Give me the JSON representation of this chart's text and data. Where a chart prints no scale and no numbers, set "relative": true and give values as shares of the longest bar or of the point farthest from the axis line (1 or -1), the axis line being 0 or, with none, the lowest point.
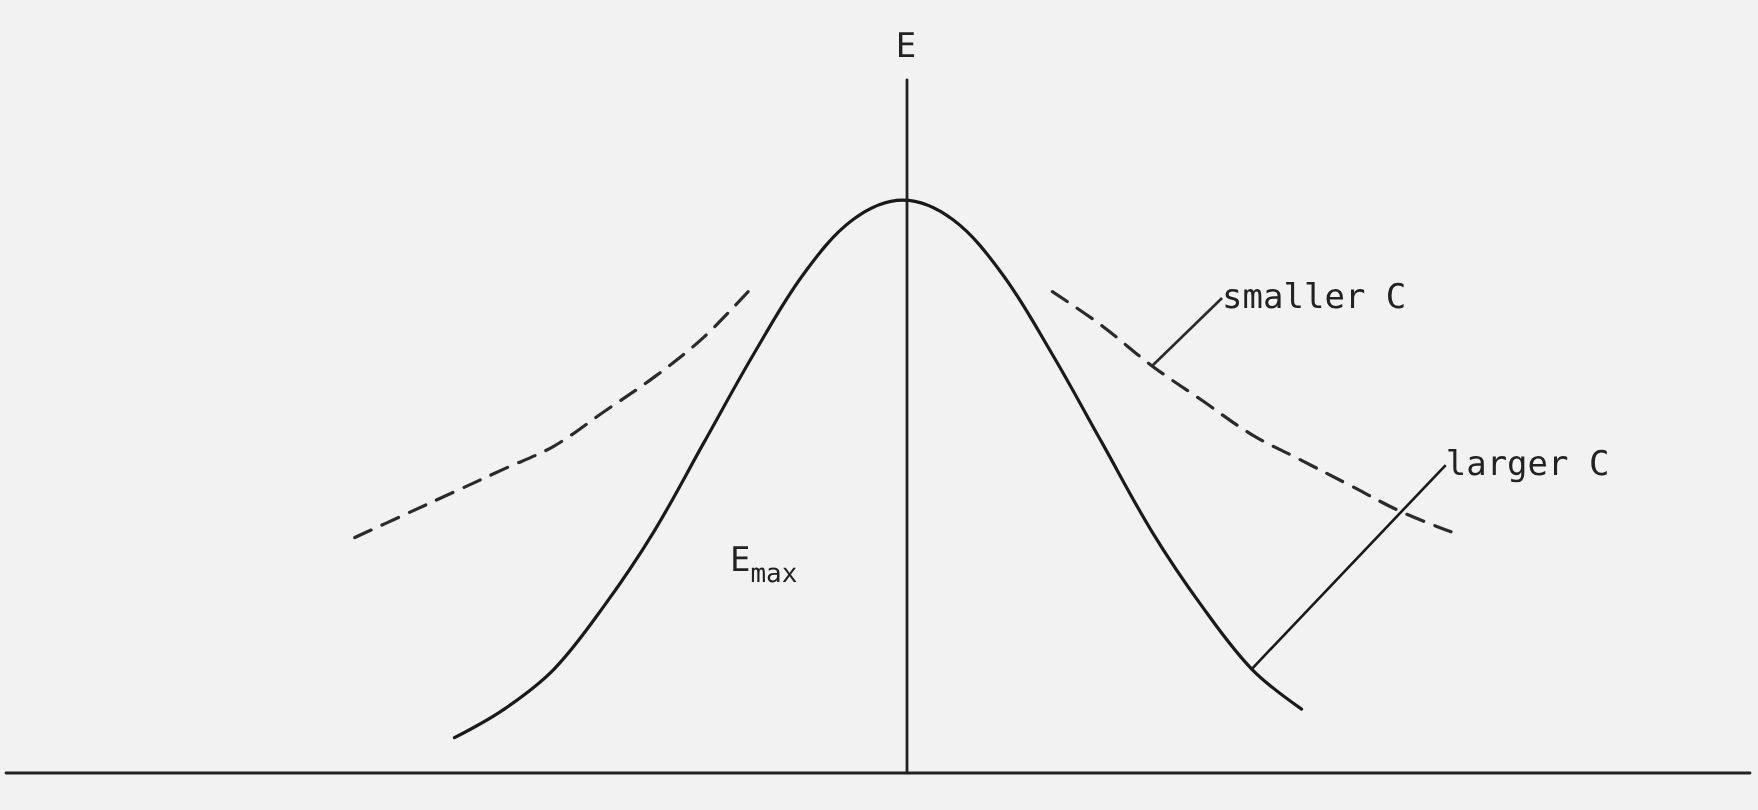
{
  "chart_data": {
    "type": "line",
    "relative": true,
    "ylabel": "E",
    "legend": false,
    "grid": false,
    "marker": "none",
    "categories": [
      null,
      null,
      null,
      null,
      null,
      null,
      null,
      null,
      null,
      null,
      null,
      null,
      null,
      null,
      null,
      null,
      null,
      null,
      null,
      null,
      null,
      null,
      null,
      null,
      null,
      null,
      null,
      null,
      null,
      null,
      null,
      null,
      null,
      null,
      null,
      null
    ],
    "series": [
      {
        "name": "smaller C",
        "color": "#2b2b2b",
        "line_style": "dashed",
        "values": [
          null,
          null,
          null,
          null,
          null,
          null,
          null,
          0.41,
          0.45,
          0.49,
          0.53,
          0.57,
          0.63,
          0.69,
          0.76,
          0.85,
          null,
          null,
          null,
          null,
          null,
          0.84,
          0.78,
          0.71,
          0.65,
          0.59,
          0.545,
          0.5,
          0.455,
          0.42,
          null,
          null,
          null,
          null,
          null,
          null
        ]
      },
      {
        "name": "larger C",
        "color": "#1a1a1a",
        "line_style": "solid",
        "values": [
          null,
          null,
          null,
          null,
          null,
          null,
          null,
          null,
          null,
          0.06,
          0.11,
          0.18,
          0.29,
          0.42,
          0.575,
          0.73,
          0.87,
          0.966,
          1,
          0.966,
          0.87,
          0.73,
          0.575,
          0.42,
          0.29,
          0.18,
          0.11,
          null,
          null,
          null,
          null,
          null,
          null,
          null,
          null,
          null
        ]
      }
    ],
    "annotations": [
      "E$_{max}$"
    ]
  }
}
